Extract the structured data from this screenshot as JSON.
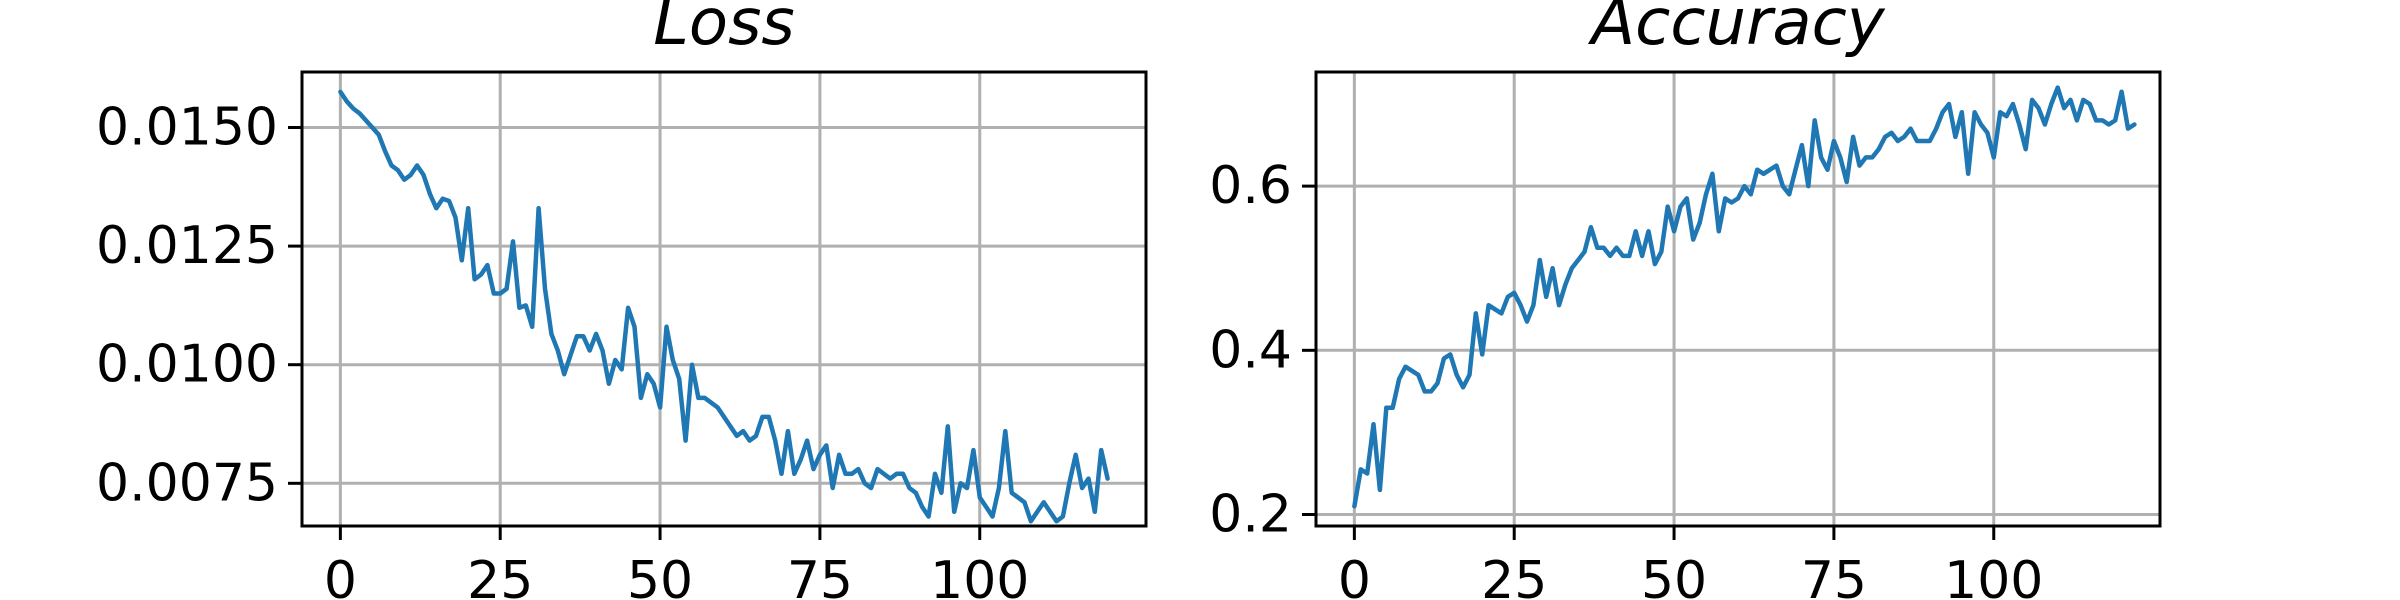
{
  "chart_data": [
    {
      "type": "line",
      "title": "Loss",
      "xlabel": "",
      "ylabel": "",
      "xlim": [
        -6,
        126
      ],
      "ylim": [
        0.0066,
        0.01617
      ],
      "xticks": [
        0,
        25,
        50,
        75,
        100
      ],
      "xtick_labels": [
        "0",
        "25",
        "50",
        "75",
        "100"
      ],
      "yticks": [
        0.0075,
        0.01,
        0.0125,
        0.015
      ],
      "ytick_labels": [
        "0.0075",
        "0.0100",
        "0.0125",
        "0.0150"
      ],
      "grid": true,
      "color": "#1f77b4",
      "series": [
        {
          "values": [
            0.01575,
            0.01555,
            0.0154,
            0.0153,
            0.01515,
            0.015,
            0.01485,
            0.0145,
            0.0142,
            0.0141,
            0.0139,
            0.014,
            0.0142,
            0.014,
            0.0136,
            0.0133,
            0.0135,
            0.01345,
            0.0131,
            0.0122,
            0.0133,
            0.0118,
            0.0119,
            0.0121,
            0.0115,
            0.0115,
            0.0116,
            0.0126,
            0.0112,
            0.01125,
            0.0108,
            0.0133,
            0.0116,
            0.01065,
            0.0103,
            0.0098,
            0.0102,
            0.0106,
            0.0106,
            0.0103,
            0.01065,
            0.0103,
            0.0096,
            0.0101,
            0.0099,
            0.0112,
            0.0108,
            0.0093,
            0.0098,
            0.0096,
            0.0091,
            0.0108,
            0.0101,
            0.0097,
            0.0084,
            0.01,
            0.0093,
            0.0093,
            0.0092,
            0.0091,
            0.0089,
            0.0087,
            0.0085,
            0.0086,
            0.0084,
            0.0085,
            0.0089,
            0.0089,
            0.0084,
            0.0077,
            0.0086,
            0.0077,
            0.008,
            0.0084,
            0.0078,
            0.0081,
            0.0083,
            0.0074,
            0.0081,
            0.0077,
            0.0077,
            0.0078,
            0.0075,
            0.0074,
            0.0078,
            0.0077,
            0.0076,
            0.0077,
            0.0077,
            0.0074,
            0.0073,
            0.007,
            0.0068,
            0.0077,
            0.0073,
            0.0087,
            0.0069,
            0.0075,
            0.0074,
            0.0082,
            0.0072,
            0.007,
            0.0068,
            0.0074,
            0.0086,
            0.0073,
            0.0072,
            0.0071,
            0.0067,
            0.0069,
            0.0071,
            0.0069,
            0.0067,
            0.0068,
            0.0075,
            0.0081,
            0.0074,
            0.0076,
            0.0069,
            0.0082,
            0.0076
          ]
        }
      ]
    },
    {
      "type": "line",
      "title": "Accuracy",
      "xlabel": "",
      "ylabel": "",
      "xlim": [
        -6,
        126
      ],
      "ylim": [
        0.186,
        0.739
      ],
      "xticks": [
        0,
        25,
        50,
        75,
        100
      ],
      "xtick_labels": [
        "0",
        "25",
        "50",
        "75",
        "100"
      ],
      "yticks": [
        0.2,
        0.4,
        0.6
      ],
      "ytick_labels": [
        "0.2",
        "0.4",
        "0.6"
      ],
      "grid": true,
      "color": "#1f77b4",
      "series": [
        {
          "values": [
            0.21,
            0.255,
            0.25,
            0.31,
            0.23,
            0.33,
            0.33,
            0.365,
            0.38,
            0.375,
            0.37,
            0.35,
            0.35,
            0.36,
            0.39,
            0.395,
            0.37,
            0.355,
            0.37,
            0.445,
            0.395,
            0.455,
            0.45,
            0.445,
            0.465,
            0.47,
            0.455,
            0.435,
            0.455,
            0.51,
            0.465,
            0.5,
            0.455,
            0.48,
            0.5,
            0.51,
            0.52,
            0.55,
            0.525,
            0.525,
            0.515,
            0.525,
            0.515,
            0.515,
            0.545,
            0.515,
            0.545,
            0.505,
            0.52,
            0.575,
            0.545,
            0.575,
            0.585,
            0.535,
            0.555,
            0.59,
            0.615,
            0.545,
            0.585,
            0.58,
            0.585,
            0.6,
            0.59,
            0.62,
            0.615,
            0.62,
            0.625,
            0.6,
            0.59,
            0.62,
            0.65,
            0.6,
            0.68,
            0.635,
            0.62,
            0.655,
            0.635,
            0.605,
            0.66,
            0.625,
            0.635,
            0.635,
            0.645,
            0.66,
            0.665,
            0.655,
            0.66,
            0.67,
            0.655,
            0.655,
            0.655,
            0.67,
            0.69,
            0.7,
            0.66,
            0.69,
            0.615,
            0.69,
            0.675,
            0.665,
            0.635,
            0.69,
            0.685,
            0.7,
            0.675,
            0.645,
            0.705,
            0.695,
            0.675,
            0.7,
            0.72,
            0.695,
            0.705,
            0.68,
            0.705,
            0.7,
            0.68,
            0.68,
            0.675,
            0.68,
            0.715,
            0.67,
            0.675
          ]
        }
      ]
    }
  ]
}
